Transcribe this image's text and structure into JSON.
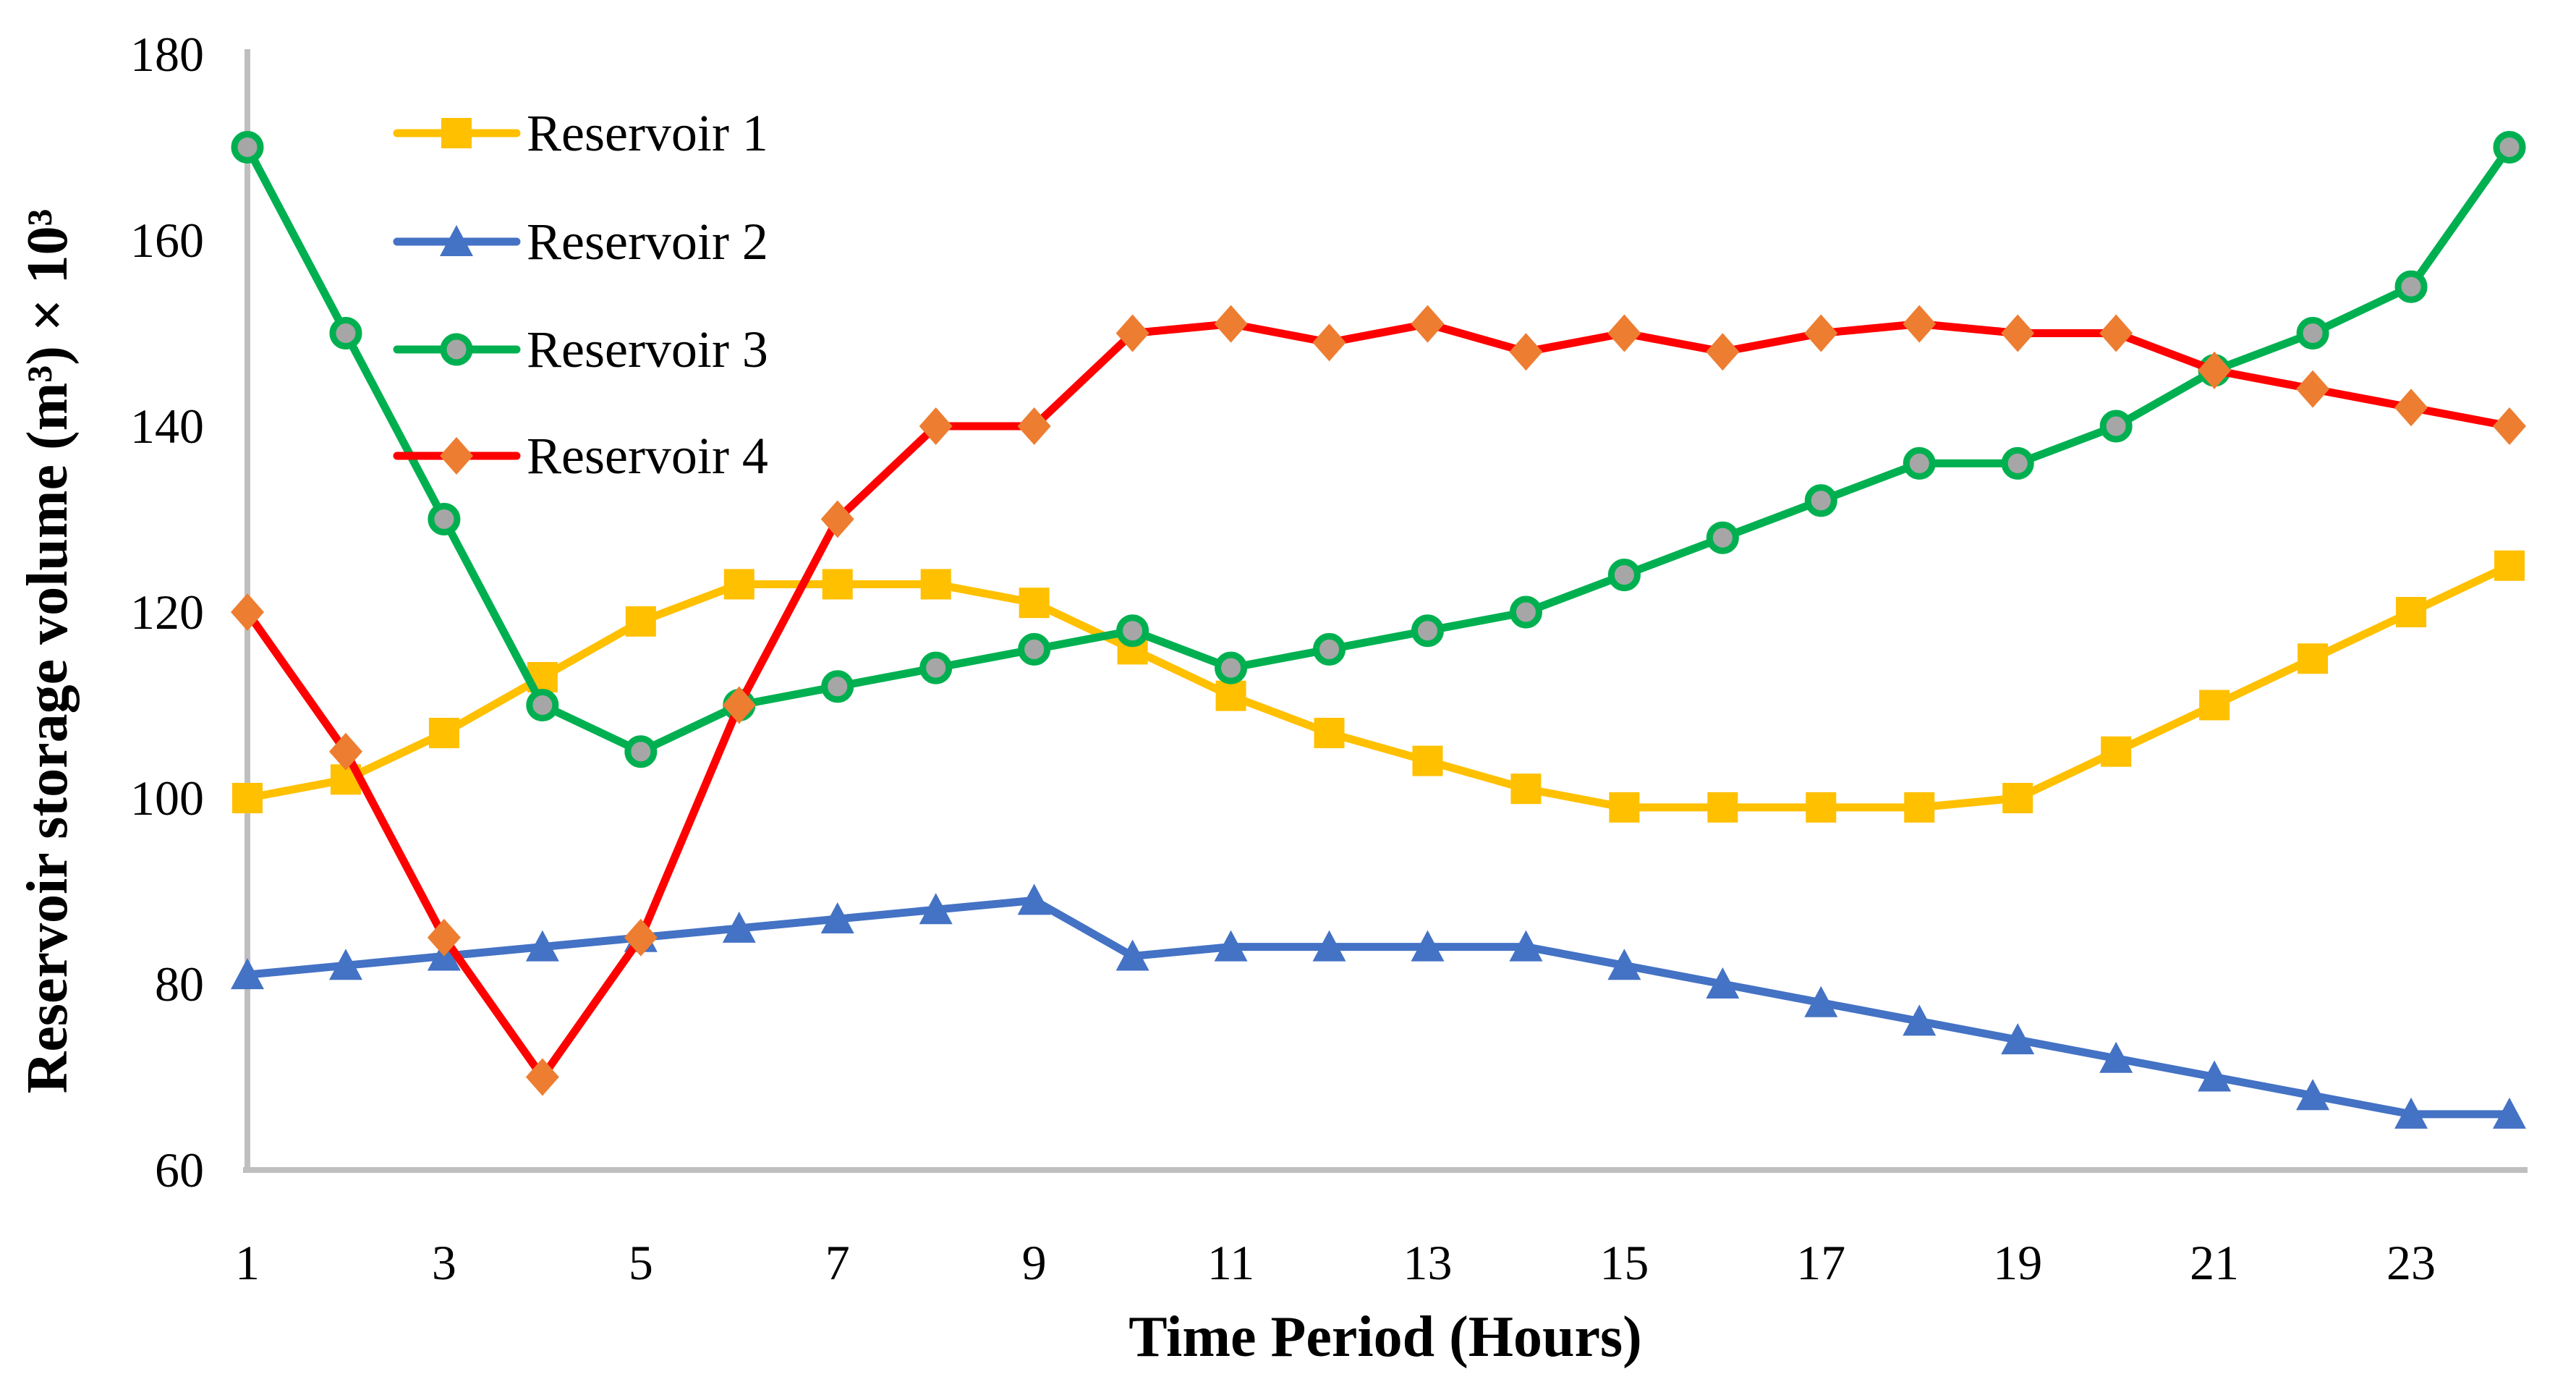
{
  "chart_data": {
    "type": "line",
    "title": "",
    "xlabel": "Time Period (Hours)",
    "ylabel": "Reservoir storage volume (m³) × 10³",
    "x": [
      1,
      2,
      3,
      4,
      5,
      6,
      7,
      8,
      9,
      10,
      11,
      12,
      13,
      14,
      15,
      16,
      17,
      18,
      19,
      20,
      21,
      22,
      23,
      24
    ],
    "x_tick_labels": [
      1,
      3,
      5,
      7,
      9,
      11,
      13,
      15,
      17,
      19,
      21,
      23
    ],
    "y_ticks": [
      60,
      80,
      100,
      120,
      140,
      160,
      180
    ],
    "ylim": [
      60,
      180
    ],
    "xlim": [
      1,
      24
    ],
    "grid": false,
    "legend_position": "top-left",
    "axis_color": "#BFBFBF",
    "text_color": "#000000",
    "series": [
      {
        "name": "Reservoir 1",
        "color": "#FFC000",
        "marker": "square",
        "marker_fill": "#FFC000",
        "values": [
          100,
          102,
          107,
          113,
          119,
          123,
          123,
          123,
          121,
          116,
          111,
          107,
          104,
          101,
          99,
          99,
          99,
          99,
          100,
          105,
          110,
          115,
          120,
          125
        ]
      },
      {
        "name": "Reservoir 2",
        "color": "#4472C4",
        "marker": "triangle",
        "marker_fill": "#4472C4",
        "values": [
          81,
          82,
          83,
          84,
          85,
          86,
          87,
          88,
          89,
          83,
          84,
          84,
          84,
          84,
          82,
          80,
          78,
          76,
          74,
          72,
          70,
          68,
          66,
          66
        ]
      },
      {
        "name": "Reservoir 3",
        "color": "#00B050",
        "marker": "circle",
        "marker_fill": "#A6A6A6",
        "values": [
          170,
          150,
          130,
          110,
          105,
          110,
          112,
          114,
          116,
          118,
          114,
          116,
          118,
          120,
          124,
          128,
          132,
          136,
          136,
          140,
          146,
          150,
          155,
          170
        ]
      },
      {
        "name": "Reservoir 4",
        "color": "#FF0000",
        "marker": "diamond",
        "marker_fill": "#ED7D31",
        "values": [
          120,
          105,
          85,
          70,
          85,
          110,
          130,
          140,
          140,
          150,
          151,
          149,
          151,
          148,
          150,
          148,
          150,
          151,
          150,
          150,
          146,
          144,
          142,
          140
        ]
      }
    ]
  }
}
